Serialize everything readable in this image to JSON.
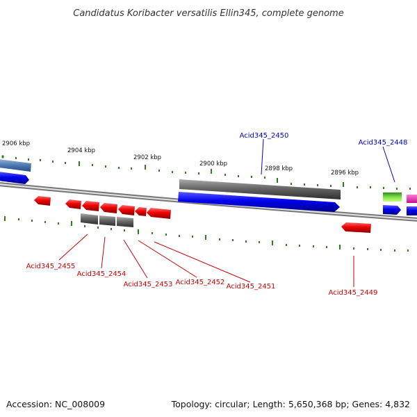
{
  "title": "Candidatus Koribacter versatilis Ellin345, complete genome",
  "footer": {
    "accession": "Accession: NC_008009",
    "summary": "Topology: circular; Length: 5,650,368 bp; Genes: 4,832"
  },
  "scale_labels": [
    "2906 kbp",
    "2904 kbp",
    "2902 kbp",
    "2900 kbp",
    "2898 kbp",
    "2896 kbp"
  ],
  "gene_labels": {
    "forward": [
      "Acid345_2450",
      "Acid345_2448"
    ],
    "reverse": [
      "Acid345_2455",
      "Acid345_2454",
      "Acid345_2453",
      "Acid345_2452",
      "Acid345_2451",
      "Acid345_2449"
    ]
  },
  "colors": {
    "forward_label": "#0000cc",
    "reverse_label": "#cc0000",
    "forward_cds": "#0000ee",
    "reverse_cds": "#ee0000",
    "gene_bar": "#666666",
    "backbone": "#888888",
    "tick": "#2e7d1a"
  }
}
